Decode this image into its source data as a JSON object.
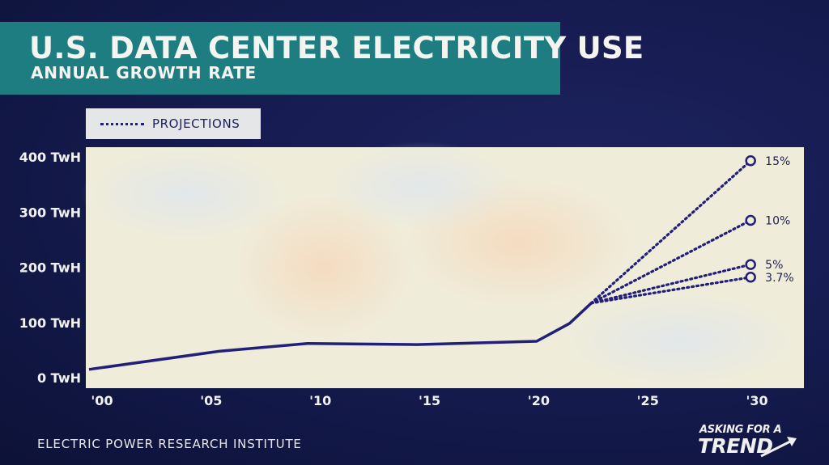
{
  "header": {
    "title": "U.S. DATA CENTER ELECTRICITY USE",
    "subtitle": "ANNUAL GROWTH RATE"
  },
  "legend": {
    "label": "PROJECTIONS",
    "style": "dotted"
  },
  "footer": {
    "source": "ELECTRIC POWER RESEARCH INSTITUTE",
    "brand_top": "ASKING FOR A",
    "brand_bottom": "TREND"
  },
  "colors": {
    "background": "#141a4c",
    "banner": "#1d7d80",
    "line": "#221f7a",
    "plot_background": "#efecd9"
  },
  "chart_data": {
    "type": "line",
    "title": "U.S. DATA CENTER ELECTRICITY USE",
    "subtitle": "ANNUAL GROWTH RATE",
    "x_unit": "year",
    "xlim": [
      2000,
      2033
    ],
    "ylim": [
      0,
      400
    ],
    "x_ticks": [
      2000,
      2005,
      2010,
      2015,
      2020,
      2025,
      2030
    ],
    "x_tick_labels": [
      "'00",
      "'05",
      "'10",
      "'15",
      "'20",
      "'25",
      "'30"
    ],
    "y_ticks": [
      0,
      100,
      200,
      300,
      400
    ],
    "y_tick_labels": [
      "0 TwH",
      "100 TwH",
      "200 TwH",
      "300 TwH",
      "400 TwH"
    ],
    "grid": false,
    "legend_position": "top-left",
    "series": [
      {
        "style": "solid",
        "x": [
          2000,
          2006,
          2010,
          2015,
          2020.5,
          2022,
          2023
        ],
        "y": [
          15,
          48,
          62,
          60,
          66,
          98,
          135
        ]
      }
    ],
    "projections": [
      {
        "label": "15%",
        "x": [
          2023,
          2030.3
        ],
        "y": [
          135,
          393
        ]
      },
      {
        "label": "10%",
        "x": [
          2023,
          2030.3
        ],
        "y": [
          135,
          285
        ]
      },
      {
        "label": "5%",
        "x": [
          2023,
          2030.3
        ],
        "y": [
          135,
          205
        ]
      },
      {
        "label": "3.7%",
        "x": [
          2023,
          2030.3
        ],
        "y": [
          135,
          182
        ]
      }
    ]
  }
}
